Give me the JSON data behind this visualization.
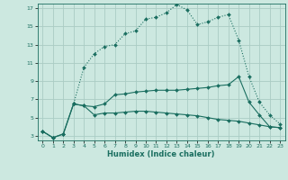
{
  "xlabel": "Humidex (Indice chaleur)",
  "background_color": "#cce8e0",
  "grid_color": "#aaccc4",
  "line_color": "#1a6e60",
  "xlim": [
    -0.5,
    23.5
  ],
  "ylim": [
    2.5,
    17.5
  ],
  "xticks": [
    0,
    1,
    2,
    3,
    4,
    5,
    6,
    7,
    8,
    9,
    10,
    11,
    12,
    13,
    14,
    15,
    16,
    17,
    18,
    19,
    20,
    21,
    22,
    23
  ],
  "yticks": [
    3,
    5,
    7,
    9,
    11,
    13,
    15,
    17
  ],
  "line1_x": [
    0,
    1,
    2,
    3,
    4,
    5,
    6,
    7,
    8,
    9,
    10,
    11,
    12,
    13,
    14,
    15,
    16,
    17,
    18,
    19,
    20,
    21,
    22,
    23
  ],
  "line1_y": [
    3.5,
    2.8,
    3.2,
    6.5,
    6.3,
    5.3,
    5.5,
    5.5,
    5.6,
    5.7,
    5.7,
    5.6,
    5.5,
    5.4,
    5.3,
    5.2,
    5.0,
    4.8,
    4.7,
    4.6,
    4.4,
    4.2,
    4.0,
    3.9
  ],
  "line2_x": [
    0,
    1,
    2,
    3,
    4,
    5,
    6,
    7,
    8,
    9,
    10,
    11,
    12,
    13,
    14,
    15,
    16,
    17,
    18,
    19,
    20,
    21,
    22,
    23
  ],
  "line2_y": [
    3.5,
    2.8,
    3.2,
    6.5,
    6.3,
    6.2,
    6.5,
    7.5,
    7.6,
    7.8,
    7.9,
    8.0,
    8.0,
    8.0,
    8.1,
    8.2,
    8.3,
    8.5,
    8.6,
    9.5,
    6.7,
    5.3,
    4.0,
    3.9
  ],
  "line3_x": [
    0,
    1,
    2,
    3,
    4,
    5,
    6,
    7,
    8,
    9,
    10,
    11,
    12,
    13,
    14,
    15,
    16,
    17,
    18,
    19,
    20,
    21,
    22,
    23
  ],
  "line3_y": [
    3.5,
    2.8,
    3.2,
    6.5,
    10.5,
    12.0,
    12.8,
    13.0,
    14.2,
    14.5,
    15.8,
    16.0,
    16.5,
    17.4,
    16.8,
    15.2,
    15.5,
    16.0,
    16.3,
    13.5,
    9.5,
    6.7,
    5.3,
    4.3
  ],
  "line3_style": "dotted"
}
